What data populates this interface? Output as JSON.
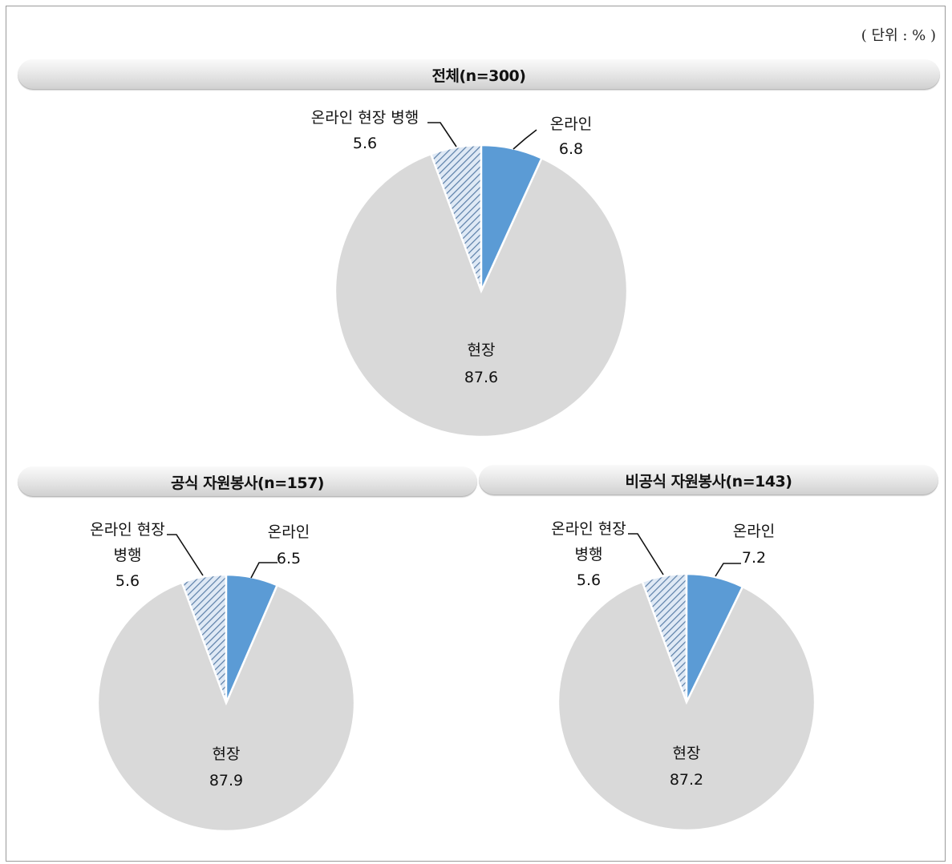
{
  "unit_label": "( 단위 : % )",
  "colors": {
    "online": "#5b9bd5",
    "onsite": "#d9d9d9",
    "both_pattern_bg": "#dfe9f5",
    "both_pattern_line": "#5b7fa8"
  },
  "chart_data": [
    {
      "type": "pie",
      "title": "전체(n=300)",
      "slices": [
        {
          "label": "온라인",
          "value": 6.8
        },
        {
          "label": "현장",
          "value": 87.6
        },
        {
          "label": "온라인 현장 병행",
          "value": 5.6
        }
      ]
    },
    {
      "type": "pie",
      "title": "공식 자원봉사(n=157)",
      "slices": [
        {
          "label": "온라인",
          "value": 6.5
        },
        {
          "label": "현장",
          "value": 87.9
        },
        {
          "label": "온라인 현장 병행",
          "value": 5.6
        }
      ]
    },
    {
      "type": "pie",
      "title": "비공식 자원봉사(n=143)",
      "slices": [
        {
          "label": "온라인",
          "value": 7.2
        },
        {
          "label": "현장",
          "value": 87.2
        },
        {
          "label": "온라인 현장 병행",
          "value": 5.6
        }
      ]
    }
  ],
  "label_lines": {
    "both_short_1": "온라인 현장",
    "both_short_2": "병행"
  }
}
